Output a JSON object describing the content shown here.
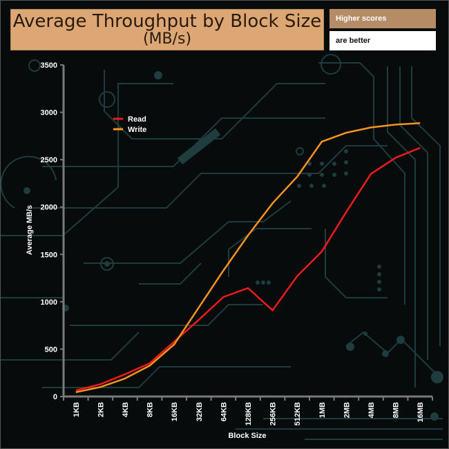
{
  "title": {
    "line1": "Average Throughput by Block Size",
    "line2": "(MB/s)"
  },
  "notes": {
    "higher": "Higher scores",
    "better": "are better"
  },
  "colors": {
    "read": "#ee1c1c",
    "write": "#f7941d",
    "title_bg": "#dca774",
    "axis": "#7a7a7a"
  },
  "chart_data": {
    "type": "line",
    "title": "Average Throughput by Block Size (MB/s)",
    "xlabel": "Block Size",
    "ylabel": "Average MB/s",
    "ylim": [
      0,
      3500
    ],
    "yticks": [
      0,
      500,
      1000,
      1500,
      2000,
      2500,
      3000,
      3500
    ],
    "categories": [
      "1KB",
      "2KB",
      "4KB",
      "8KB",
      "16KB",
      "32KB",
      "64KB",
      "128KB",
      "256KB",
      "512KB",
      "1MB",
      "2MB",
      "4MB",
      "8MB",
      "16MB"
    ],
    "series": [
      {
        "name": "Read",
        "color": "#ee1c1c",
        "values": [
          65,
          130,
          235,
          350,
          580,
          810,
          1050,
          1145,
          910,
          1270,
          1530,
          1950,
          2350,
          2520,
          2625
        ]
      },
      {
        "name": "Write",
        "color": "#f7941d",
        "values": [
          45,
          100,
          190,
          325,
          550,
          940,
          1330,
          1700,
          2040,
          2320,
          2690,
          2785,
          2840,
          2870,
          2885
        ]
      }
    ],
    "legend": "top-left",
    "grid": false
  }
}
